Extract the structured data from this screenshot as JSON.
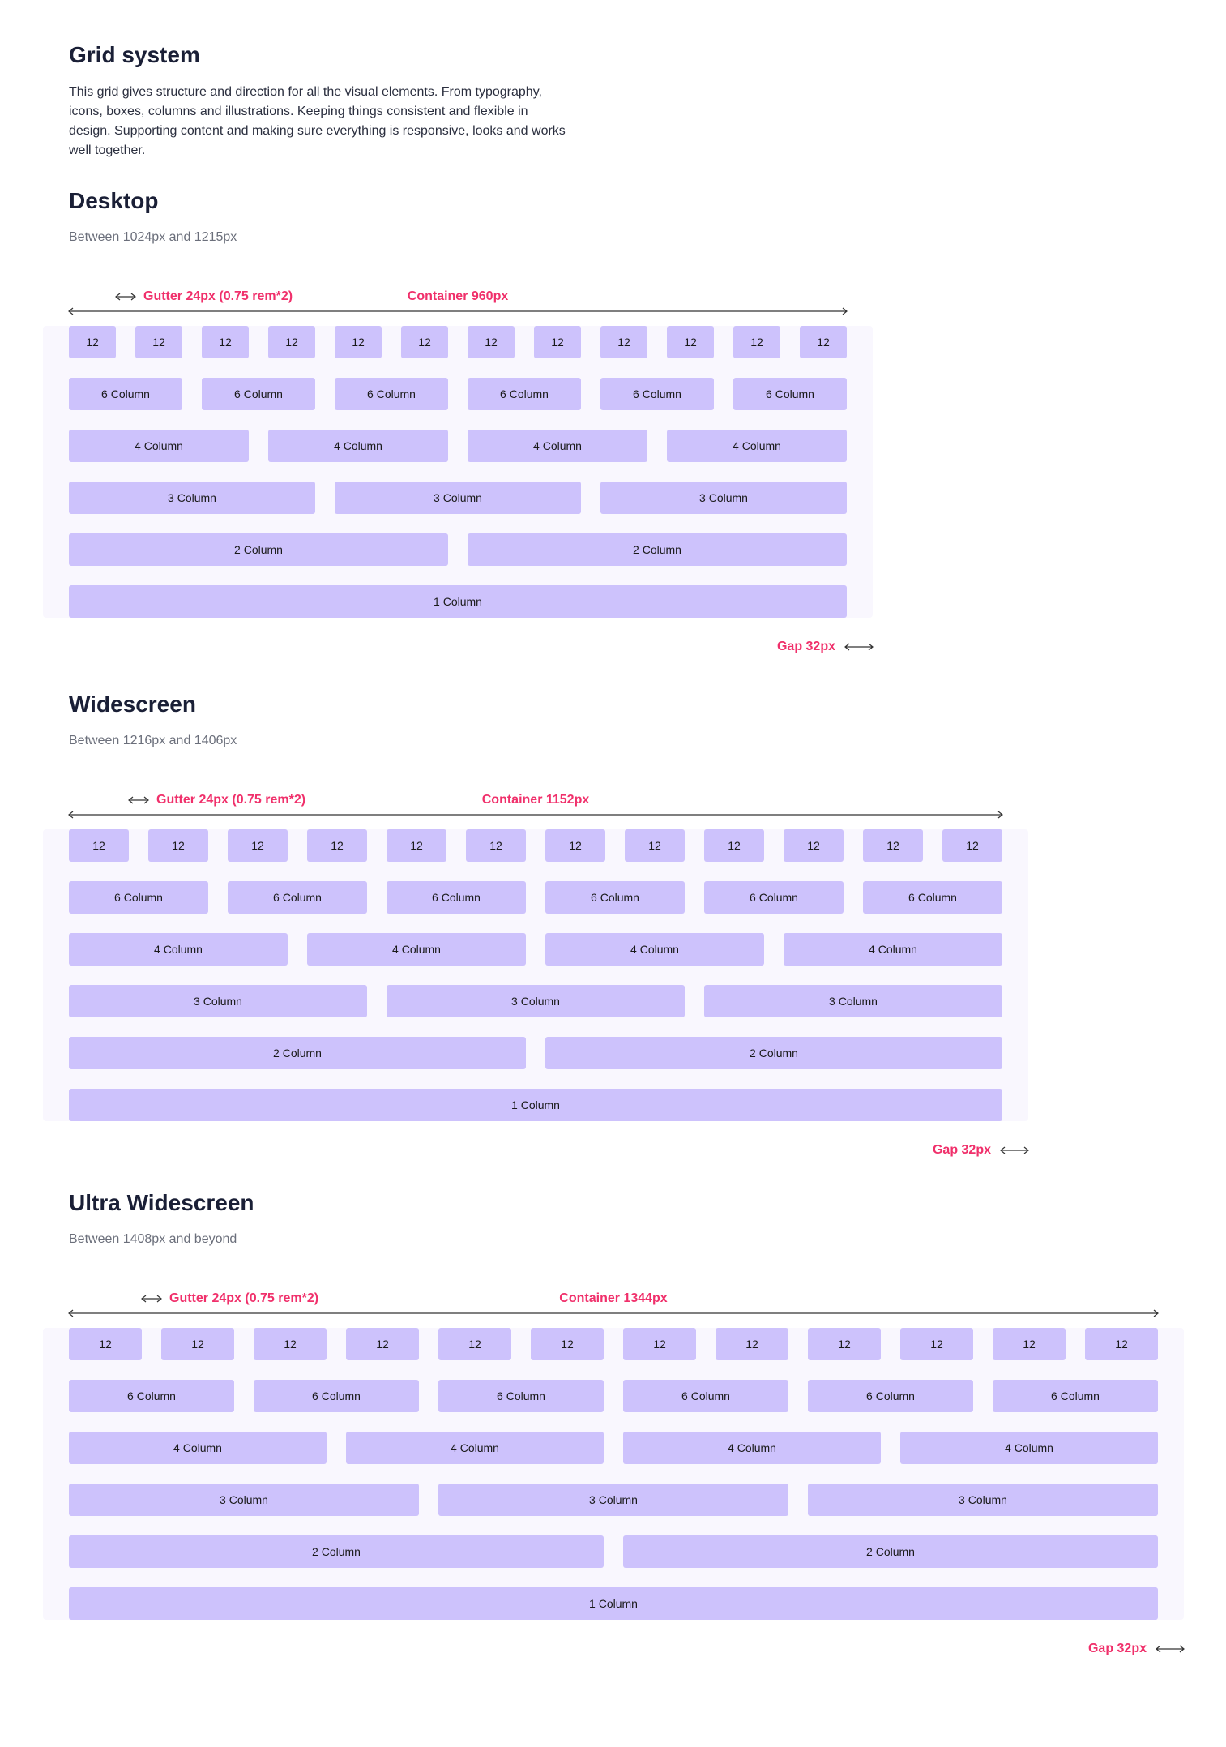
{
  "title": "Grid system",
  "description": "This grid gives structure and direction for all the visual elements. From typography, icons, boxes, columns and illustrations. Keeping things consistent and flexible in design. Supporting content and making sure everything is responsive, looks and works well together.",
  "sections": [
    {
      "heading": "Desktop",
      "range": "Between 1024px and 1215px",
      "gutter_label": "Gutter 24px (0.75 rem*2)",
      "container_label": "Container 960px",
      "gap_label": "Gap 32px",
      "rows": [
        [
          "12",
          "12",
          "12",
          "12",
          "12",
          "12",
          "12",
          "12",
          "12",
          "12",
          "12",
          "12"
        ],
        [
          "6 Column",
          "6 Column",
          "6 Column",
          "6 Column",
          "6 Column",
          "6 Column"
        ],
        [
          "4 Column",
          "4 Column",
          "4 Column",
          "4 Column"
        ],
        [
          "3 Column",
          "3 Column",
          "3 Column"
        ],
        [
          "2 Column",
          "2 Column"
        ],
        [
          "1 Column"
        ]
      ]
    },
    {
      "heading": "Widescreen",
      "range": "Between 1216px and 1406px",
      "gutter_label": "Gutter 24px (0.75 rem*2)",
      "container_label": "Container 1152px",
      "gap_label": "Gap 32px",
      "rows": [
        [
          "12",
          "12",
          "12",
          "12",
          "12",
          "12",
          "12",
          "12",
          "12",
          "12",
          "12",
          "12"
        ],
        [
          "6 Column",
          "6 Column",
          "6 Column",
          "6 Column",
          "6 Column",
          "6 Column"
        ],
        [
          "4 Column",
          "4 Column",
          "4 Column",
          "4 Column"
        ],
        [
          "3 Column",
          "3 Column",
          "3 Column"
        ],
        [
          "2 Column",
          "2 Column"
        ],
        [
          "1 Column"
        ]
      ]
    },
    {
      "heading": "Ultra Widescreen",
      "range": "Between 1408px and beyond",
      "gutter_label": "Gutter 24px (0.75 rem*2)",
      "container_label": "Container 1344px",
      "gap_label": "Gap 32px",
      "rows": [
        [
          "12",
          "12",
          "12",
          "12",
          "12",
          "12",
          "12",
          "12",
          "12",
          "12",
          "12",
          "12"
        ],
        [
          "6 Column",
          "6 Column",
          "6 Column",
          "6 Column",
          "6 Column",
          "6 Column"
        ],
        [
          "4 Column",
          "4 Column",
          "4 Column",
          "4 Column"
        ],
        [
          "3 Column",
          "3 Column",
          "3 Column"
        ],
        [
          "2 Column",
          "2 Column"
        ],
        [
          "1 Column"
        ]
      ]
    }
  ]
}
